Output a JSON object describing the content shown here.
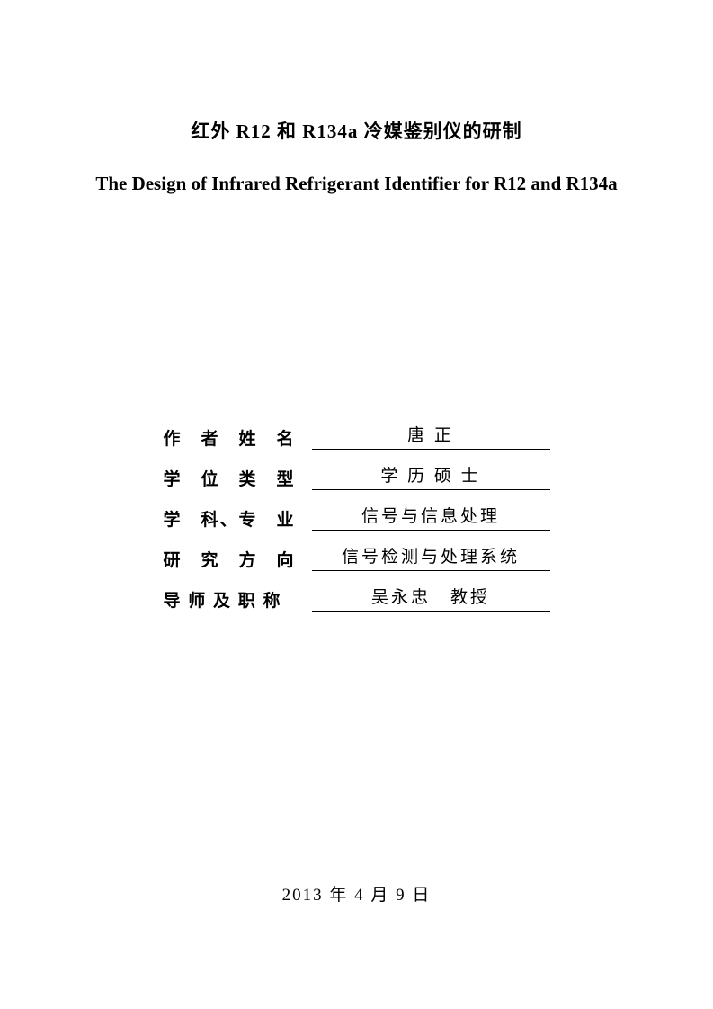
{
  "title_chinese": "红外 R12 和 R134a 冷媒鉴别仪的研制",
  "title_english": "The Design of Infrared Refrigerant Identifier for R12 and R134a",
  "info": {
    "rows": [
      {
        "label": "作　者　姓　名",
        "value": "唐 正"
      },
      {
        "label": "学　位　类　型",
        "value": "学 历 硕 士"
      },
      {
        "label": "学　科、专　业",
        "value": "信号与信息处理"
      },
      {
        "label": "研　究　方　向",
        "value": "信号检测与处理系统"
      },
      {
        "label": "导 师 及 职 称",
        "value": "吴永忠　教授"
      }
    ]
  },
  "date": "2013 年 4 月 9 日"
}
